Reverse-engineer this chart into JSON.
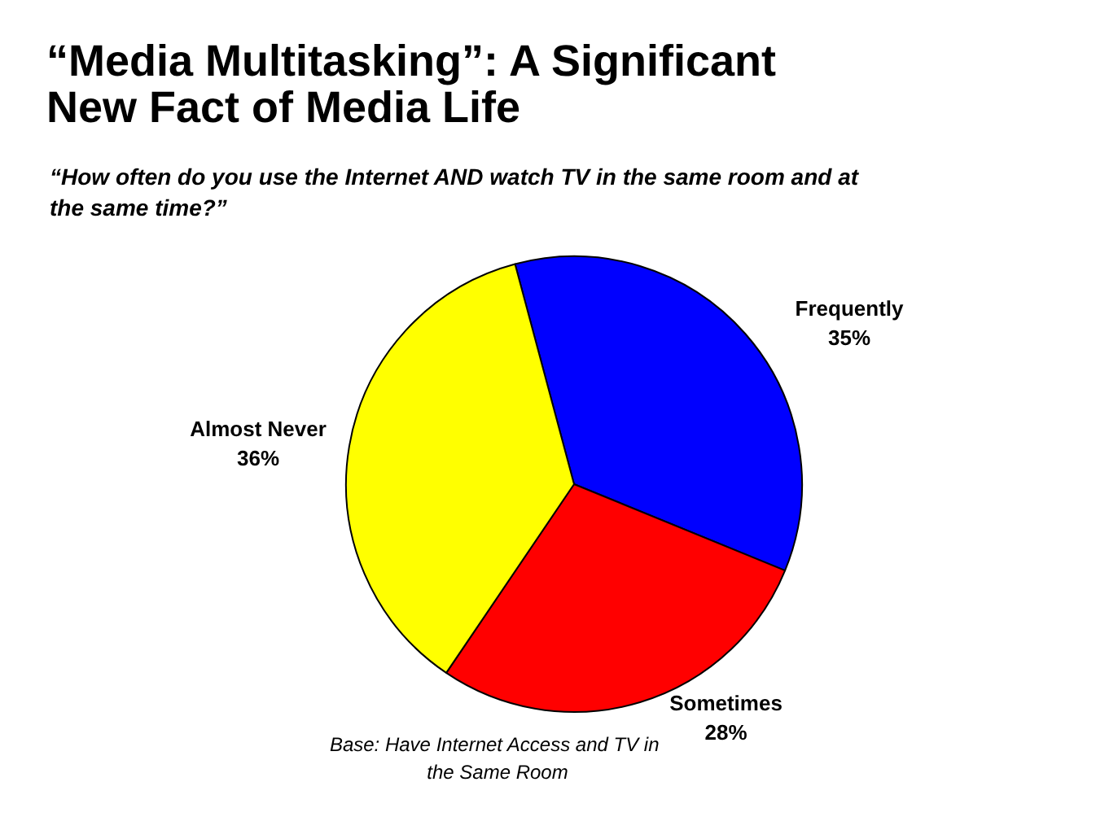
{
  "chart_data": {
    "type": "pie",
    "title": "“Media Multitasking”:  A Significant\nNew Fact of Media Life",
    "subtitle": "“How often do you use the Internet AND watch TV in the same room and at\nthe same time?”",
    "categories": [
      "Frequently",
      "Sometimes",
      "Almost Never"
    ],
    "values": [
      35,
      28,
      36
    ],
    "value_labels": [
      "35%",
      "28%",
      "36%"
    ],
    "colors": [
      "#0000ff",
      "#ff0000",
      "#ffff00"
    ],
    "annotations": [
      "Base:  Have Internet Access and TV in\nthe Same Room"
    ]
  }
}
